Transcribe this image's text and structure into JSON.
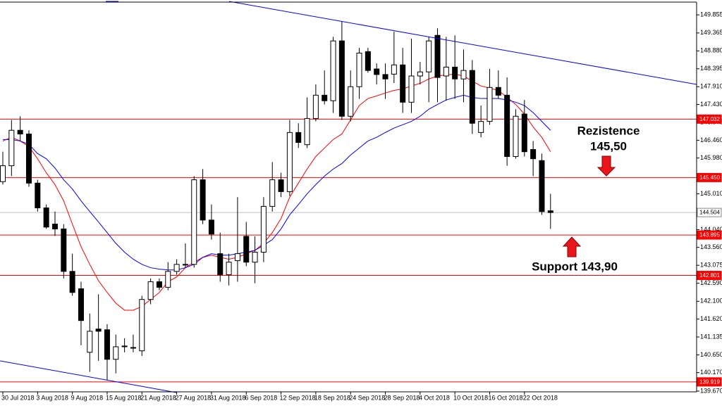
{
  "chart_data": {
    "type": "candlestick",
    "categories": [
      "30 Jul 2018",
      null,
      null,
      null,
      "3 Aug 2018",
      null,
      null,
      null,
      "9 Aug 2018",
      null,
      null,
      null,
      "15 Aug 2018",
      null,
      null,
      null,
      "21 Aug 2018",
      null,
      null,
      null,
      "27 Aug 2018",
      null,
      null,
      null,
      "31 Aug 2018",
      null,
      null,
      null,
      "6 Sep 2018",
      null,
      null,
      null,
      "12 Sep 2018",
      null,
      null,
      null,
      "18 Sep 2018",
      null,
      null,
      null,
      "24 Sep 2018",
      null,
      null,
      null,
      "28 Sep 2018",
      null,
      null,
      null,
      "4 Oct 2018",
      null,
      null,
      null,
      "10 Oct 2018",
      null,
      null,
      null,
      "16 Oct 2018",
      null,
      null,
      null,
      "22 Oct 2018",
      null,
      null,
      null
    ],
    "open": [
      145.34,
      145.77,
      146.73,
      146.63,
      145.3,
      144.63,
      144.19,
      144.06,
      142.91,
      142.44,
      140.72,
      141.35,
      141.33,
      140.53,
      140.87,
      140.85,
      140.76,
      142.15,
      142.63,
      142.48,
      142.91,
      143.1,
      143.1,
      145.39,
      144.3,
      143.39,
      142.82,
      143.2,
      143.86,
      143.16,
      143.43,
      144.67,
      145.39,
      145.07,
      146.67,
      146.34,
      147.05,
      147.68,
      147.53,
      149.15,
      147.11,
      147.91,
      148.86,
      148.39,
      148.24,
      148.25,
      148.5,
      147.49,
      148.2,
      148.31,
      149.3,
      148.2,
      148.44,
      148.12,
      148.35,
      146.67,
      146.97,
      147.89,
      147.68,
      146.02,
      147.17,
      146.21,
      145.91,
      144.55
    ],
    "high": [
      146.15,
      147.01,
      147.11,
      146.73,
      145.39,
      144.72,
      144.53,
      144.19,
      143.39,
      142.63,
      141.77,
      142.29,
      141.48,
      141.2,
      141.1,
      141.2,
      142.25,
      142.72,
      142.72,
      143.16,
      143.24,
      143.67,
      145.49,
      145.68,
      144.72,
      143.96,
      143.39,
      144.92,
      144.25,
      143.86,
      144.92,
      145.87,
      145.58,
      147.01,
      146.92,
      147.62,
      147.97,
      148.35,
      149.26,
      149.68,
      148.35,
      148.96,
      148.96,
      148.54,
      148.54,
      149.4,
      148.96,
      149.21,
      148.58,
      149.26,
      149.49,
      149.26,
      149.3,
      148.92,
      148.63,
      147.4,
      148.39,
      148.35,
      148.16,
      147.3,
      147.55,
      146.44,
      146.1,
      145.01
    ],
    "low": [
      145.26,
      145.49,
      146.44,
      145.2,
      144.53,
      144.06,
      143.87,
      142.72,
      142.25,
      140.91,
      140.19,
      140.49,
      139.96,
      140.15,
      140.72,
      140.72,
      140.62,
      142.02,
      142.4,
      142.4,
      142.82,
      143.01,
      143.01,
      144.19,
      143.77,
      142.63,
      142.53,
      142.63,
      143.05,
      142.59,
      143.16,
      144.53,
      144.92,
      144.95,
      146.25,
      146.25,
      146.97,
      147.43,
      147.2,
      147.01,
      146.97,
      147.58,
      148.29,
      147.97,
      147.58,
      148.01,
      147.2,
      147.2,
      147.97,
      147.49,
      147.49,
      147.53,
      147.58,
      147.49,
      146.63,
      146.54,
      146.88,
      147.58,
      145.77,
      145.96,
      146.02,
      145.49,
      144.44,
      144.06
    ],
    "close": [
      145.77,
      146.73,
      146.63,
      145.3,
      144.63,
      144.11,
      144.06,
      142.91,
      142.34,
      141.58,
      141.29,
      141.29,
      140.53,
      140.87,
      140.89,
      140.85,
      142.15,
      142.63,
      142.48,
      142.91,
      143.1,
      143.08,
      145.39,
      144.3,
      143.92,
      142.82,
      143.16,
      143.39,
      143.16,
      143.43,
      144.67,
      145.39,
      145.07,
      146.67,
      146.4,
      147.05,
      147.68,
      147.53,
      149.15,
      147.11,
      147.91,
      148.82,
      148.35,
      148.24,
      148.12,
      148.5,
      147.49,
      148.2,
      148.31,
      149.15,
      148.16,
      148.44,
      148.12,
      148.35,
      146.92,
      146.97,
      147.89,
      147.68,
      146.02,
      147.11,
      146.15,
      145.96,
      144.53,
      144.504
    ],
    "up_color": "#ffffff",
    "down_color": "#000000",
    "outline_color": "#000000",
    "series": [
      {
        "color": "#ff0000",
        "values": [
          146.44,
          146.54,
          146.44,
          146.29,
          145.96,
          145.58,
          145.26,
          144.82,
          144.19,
          143.58,
          143.1,
          142.66,
          142.34,
          142.05,
          141.86,
          141.86,
          141.96,
          142.15,
          142.34,
          142.63,
          142.76,
          143.01,
          143.16,
          143.29,
          143.35,
          143.29,
          143.24,
          143.29,
          143.39,
          143.48,
          143.67,
          143.96,
          144.34,
          144.92,
          145.3,
          145.68,
          146.02,
          146.25,
          146.48,
          146.63,
          147.01,
          147.4,
          147.59,
          147.66,
          147.74,
          147.81,
          147.85,
          147.93,
          148.0,
          148.12,
          148.2,
          148.23,
          148.25,
          148.2,
          148.06,
          147.93,
          147.87,
          147.81,
          147.62,
          147.43,
          147.17,
          146.82,
          146.54,
          146.15
        ]
      },
      {
        "color": "#0000ff",
        "values": [
          146.48,
          146.48,
          146.44,
          146.35,
          146.1,
          145.96,
          145.71,
          145.39,
          145.14,
          144.82,
          144.53,
          144.25,
          143.96,
          143.67,
          143.43,
          143.24,
          143.1,
          143.01,
          142.97,
          142.95,
          142.95,
          143.01,
          143.1,
          143.29,
          143.39,
          143.35,
          143.35,
          143.39,
          143.43,
          143.48,
          143.62,
          143.77,
          144.06,
          144.44,
          144.72,
          145.01,
          145.26,
          145.49,
          145.68,
          145.83,
          146.06,
          146.25,
          146.44,
          146.54,
          146.67,
          146.79,
          146.88,
          146.97,
          147.11,
          147.3,
          147.43,
          147.55,
          147.62,
          147.68,
          147.62,
          147.59,
          147.59,
          147.59,
          147.55,
          147.49,
          147.4,
          147.21,
          146.97,
          146.73
        ]
      }
    ],
    "levels": [
      {
        "value": 147.032,
        "color": "#ff0000"
      },
      {
        "value": {
          "value": 145.45,
          "label": "145.450"
        },
        "color": "#ff0000"
      },
      {
        "value": 144.504,
        "color": "#c0c0c0"
      },
      {
        "value": 143.895,
        "color": "#ff0000"
      },
      {
        "value": 142.801,
        "color": "#ff0000"
      },
      {
        "value": 139.919,
        "color": "#ff0000"
      }
    ],
    "ylim": [
      139.65,
      150.2
    ],
    "yticks": [
      149.855,
      149.365,
      {
        "value": 148.88,
        "label": "148.880"
      },
      148.395,
      {
        "value": 147.91,
        "label": "147.910"
      },
      {
        "value": 147.43,
        "label": "147.430"
      },
      146.945,
      {
        "value": 146.46,
        "label": "146.460"
      },
      {
        "value": 145.98,
        "label": "145.980"
      },
      {
        "value": 145.01,
        "label": "145.010"
      },
      {
        "value": 144.04,
        "label": "144.040"
      },
      {
        "value": 143.56,
        "label": "143.560"
      },
      143.075,
      {
        "value": 142.59,
        "label": "142.590"
      },
      {
        "value": 142.1,
        "label": "142.100"
      },
      {
        "value": 141.62,
        "label": "141.620"
      },
      141.135,
      {
        "value": 140.65,
        "label": "140.650"
      },
      {
        "value": 140.17,
        "label": "140.170"
      },
      {
        "value": 139.67,
        "label": "139.670"
      }
    ],
    "annotations": [
      "Rezistence",
      "145,50",
      "Support 143,90"
    ]
  }
}
